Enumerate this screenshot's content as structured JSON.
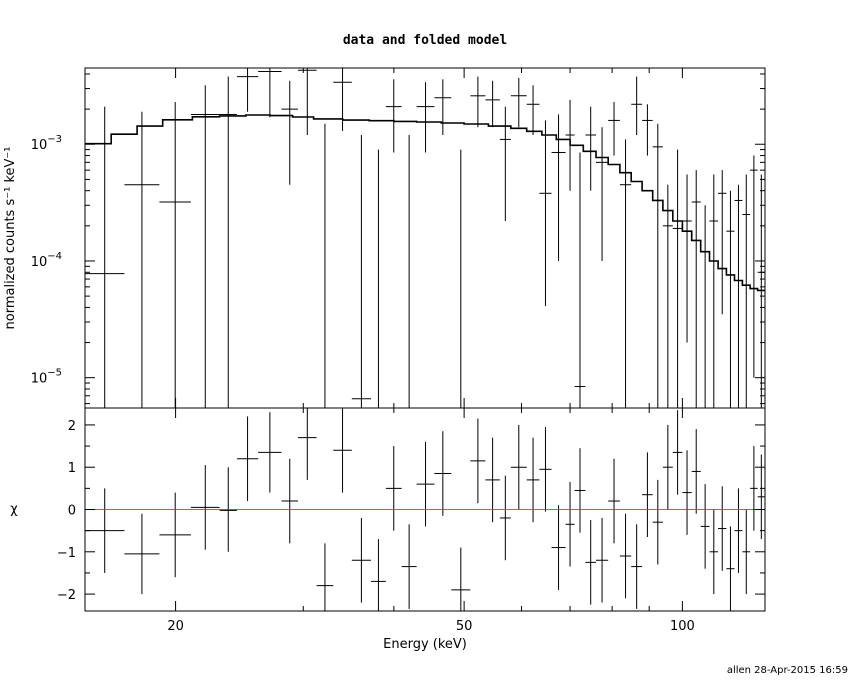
{
  "chart_data": {
    "title": "data and folded model",
    "footer": "allen 28-Apr-2015 16:59",
    "xlabel": "Energy (keV)",
    "x_scale": "log",
    "xlim": [
      15.0,
      130.0
    ],
    "x_ticks": [
      {
        "value": 20,
        "label": "20"
      },
      {
        "value": 50,
        "label": "50"
      },
      {
        "value": 100,
        "label": "100"
      }
    ],
    "colors": {
      "data": "#000000",
      "model": "#000000",
      "zero_line": "#00cc00"
    },
    "panels": [
      {
        "id": "spectrum",
        "type": "scatter",
        "ylabel": "normalized counts s⁻¹ keV⁻¹",
        "y_scale": "log",
        "ylim": [
          5.5e-06,
          0.0045
        ],
        "y_ticks": [
          {
            "value": 0.001,
            "base": "10",
            "exp": "−3"
          },
          {
            "value": 0.0001,
            "base": "10",
            "exp": "−4"
          },
          {
            "value": 1e-05,
            "base": "10",
            "exp": "−5"
          }
        ],
        "data": [
          [
            15.0,
            17.0,
            7.8e-05,
            5.5e-06,
            0.0021
          ],
          [
            17.0,
            19.0,
            0.00045,
            5.5e-06,
            0.0019
          ],
          [
            19.0,
            21.0,
            0.00032,
            5.5e-06,
            0.0023
          ],
          [
            21.0,
            23.0,
            0.0018,
            5.5e-06,
            0.0032
          ],
          [
            23.0,
            24.3,
            0.0018,
            5.5e-06,
            0.0038
          ],
          [
            24.3,
            26.0,
            0.0038,
            0.0019,
            0.0048
          ],
          [
            26.0,
            28.0,
            0.0042,
            0.0017,
            0.0048
          ],
          [
            28.0,
            29.5,
            0.002,
            0.00045,
            0.0035
          ],
          [
            29.5,
            31.3,
            0.0043,
            0.0012,
            0.0048
          ],
          [
            31.3,
            33.0,
            5.5e-06,
            5.5e-06,
            0.0015
          ],
          [
            33.0,
            35.0,
            0.0034,
            0.0013,
            0.0048
          ],
          [
            35.0,
            37.2,
            6.6e-06,
            5.5e-06,
            0.0012
          ],
          [
            37.2,
            39.0,
            5.5e-06,
            5.5e-06,
            0.0009
          ],
          [
            39.0,
            41.0,
            0.0021,
            0.00085,
            0.0036
          ],
          [
            41.0,
            43.0,
            5.5e-06,
            5.5e-06,
            0.0012
          ],
          [
            43.0,
            45.5,
            0.0021,
            0.00085,
            0.0034
          ],
          [
            45.5,
            48.0,
            0.0025,
            0.0012,
            0.0036
          ],
          [
            48.0,
            51.0,
            5.5e-06,
            5.5e-06,
            0.0009
          ],
          [
            51.0,
            53.5,
            0.0026,
            0.0014,
            0.0038
          ],
          [
            53.5,
            56.0,
            0.0024,
            0.0014,
            0.0035
          ],
          [
            56.0,
            58.0,
            0.0011,
            0.00022,
            0.0021
          ],
          [
            58.0,
            61.0,
            0.0026,
            0.0014,
            0.0037
          ],
          [
            61.0,
            63.5,
            0.0022,
            0.0012,
            0.0032
          ],
          [
            63.5,
            66.0,
            0.00038,
            4.1e-05,
            0.0016
          ],
          [
            66.0,
            69.0,
            0.00085,
            0.0001,
            0.0018
          ],
          [
            69.0,
            71.0,
            0.0012,
            0.0004,
            0.0024
          ],
          [
            71.0,
            73.5,
            8.4e-06,
            5.5e-06,
            0.00085
          ],
          [
            73.5,
            76.0,
            0.0012,
            0.0004,
            0.0021
          ],
          [
            76.0,
            79.0,
            0.0007,
            0.0001,
            0.0014
          ],
          [
            79.0,
            82.0,
            0.0016,
            0.0008,
            0.0023
          ],
          [
            82.0,
            85.0,
            0.00045,
            5.5e-06,
            0.0011
          ],
          [
            85.0,
            88.0,
            0.0022,
            0.0012,
            0.0038
          ],
          [
            88.0,
            91.0,
            0.0016,
            0.0008,
            0.0022
          ],
          [
            91.0,
            94.0,
            0.00095,
            5.5e-06,
            0.0015
          ],
          [
            94.0,
            97.0,
            0.0002,
            5.5e-06,
            0.00045
          ],
          [
            97.0,
            100.0,
            0.00019,
            5.5e-06,
            0.0009
          ],
          [
            100.0,
            103.0,
            0.00022,
            2e-05,
            0.00055
          ],
          [
            103.0,
            106.0,
            0.00032,
            5.5e-06,
            0.0006
          ],
          [
            106.0,
            109.0,
            0.00012,
            5.5e-06,
            0.0003
          ],
          [
            109.0,
            112.0,
            0.00022,
            5.5e-06,
            0.00055
          ],
          [
            112.0,
            115.0,
            0.00038,
            3.5e-05,
            0.0006
          ],
          [
            115.0,
            118.0,
            0.00018,
            5.5e-06,
            0.0004
          ],
          [
            118.0,
            121.0,
            0.00033,
            5.5e-06,
            0.00045
          ],
          [
            121.0,
            124.0,
            0.00025,
            5.5e-06,
            0.00055
          ],
          [
            124.0,
            127.0,
            0.0006,
            1e-05,
            0.0008
          ],
          [
            127.0,
            130.0,
            8e-05,
            5.5e-06,
            0.00055
          ]
        ],
        "model": [
          [
            15.0,
            16.3,
            0.00101
          ],
          [
            16.3,
            17.7,
            0.00122
          ],
          [
            17.7,
            19.2,
            0.00143
          ],
          [
            19.2,
            21.1,
            0.00162
          ],
          [
            21.1,
            23.0,
            0.00172
          ],
          [
            23.0,
            25.0,
            0.00175
          ],
          [
            25.0,
            27.0,
            0.00178
          ],
          [
            27.0,
            29.0,
            0.00176
          ],
          [
            29.0,
            31.0,
            0.00171
          ],
          [
            31.0,
            34.0,
            0.00165
          ],
          [
            34.0,
            37.0,
            0.00161
          ],
          [
            37.0,
            40.0,
            0.00159
          ],
          [
            40.0,
            43.0,
            0.00157
          ],
          [
            43.0,
            46.5,
            0.00155
          ],
          [
            46.5,
            50.0,
            0.00152
          ],
          [
            50.0,
            54.0,
            0.00149
          ],
          [
            54.0,
            58.0,
            0.00143
          ],
          [
            58.0,
            61.0,
            0.00137
          ],
          [
            61.0,
            64.0,
            0.00129
          ],
          [
            64.0,
            67.0,
            0.0012
          ],
          [
            67.0,
            70.0,
            0.0011
          ],
          [
            70.0,
            73.0,
            0.00098
          ],
          [
            73.0,
            76.0,
            0.00087
          ],
          [
            76.0,
            79.0,
            0.00077
          ],
          [
            79.0,
            82.0,
            0.00067
          ],
          [
            82.0,
            85.0,
            0.00057
          ],
          [
            85.0,
            88.0,
            0.00048
          ],
          [
            88.0,
            91.0,
            0.0004
          ],
          [
            91.0,
            94.0,
            0.00033
          ],
          [
            94.0,
            97.0,
            0.00027
          ],
          [
            97.0,
            100.0,
            0.00022
          ],
          [
            100.0,
            103.0,
            0.00018
          ],
          [
            103.0,
            106.0,
            0.00015
          ],
          [
            106.0,
            109.0,
            0.00012
          ],
          [
            109.0,
            112.0,
            0.0001
          ],
          [
            112.0,
            115.0,
            8.6e-05
          ],
          [
            115.0,
            118.0,
            7.6e-05
          ],
          [
            118.0,
            121.0,
            6.8e-05
          ],
          [
            121.0,
            124.0,
            6.2e-05
          ],
          [
            124.0,
            127.0,
            5.8e-05
          ],
          [
            127.0,
            130.0,
            5.6e-05
          ]
        ]
      },
      {
        "id": "residuals",
        "type": "scatter",
        "ylabel": "χ",
        "y_scale": "linear",
        "ylim": [
          -2.4,
          2.4
        ],
        "y_ticks": [
          {
            "value": 2,
            "label": "2"
          },
          {
            "value": 1,
            "label": "1"
          },
          {
            "value": 0,
            "label": "0"
          },
          {
            "value": -1,
            "label": "−1"
          },
          {
            "value": -2,
            "label": "−2"
          }
        ],
        "zero_line": 0,
        "data": [
          [
            15.0,
            17.0,
            -0.5,
            -1.5,
            0.5
          ],
          [
            17.0,
            19.0,
            -1.05,
            -2.0,
            -0.1
          ],
          [
            19.0,
            21.0,
            -0.6,
            -1.6,
            0.4
          ],
          [
            21.0,
            23.0,
            0.05,
            -0.95,
            1.05
          ],
          [
            23.0,
            24.3,
            -0.02,
            -1.0,
            1.0
          ],
          [
            24.3,
            26.0,
            1.2,
            0.2,
            2.2
          ],
          [
            26.0,
            28.0,
            1.35,
            0.4,
            2.3
          ],
          [
            28.0,
            29.5,
            0.2,
            -0.8,
            1.2
          ],
          [
            29.5,
            31.3,
            1.7,
            0.7,
            2.4
          ],
          [
            31.3,
            33.0,
            -1.8,
            -2.4,
            -0.8
          ],
          [
            33.0,
            35.0,
            1.4,
            0.4,
            2.4
          ],
          [
            35.0,
            37.2,
            -1.2,
            -2.2,
            -0.2
          ],
          [
            37.2,
            39.0,
            -1.7,
            -2.4,
            -0.7
          ],
          [
            39.0,
            41.0,
            0.5,
            -0.5,
            1.5
          ],
          [
            41.0,
            43.0,
            -1.35,
            -2.35,
            -0.35
          ],
          [
            43.0,
            45.5,
            0.6,
            -0.4,
            1.6
          ],
          [
            45.5,
            48.0,
            0.85,
            -0.15,
            1.85
          ],
          [
            48.0,
            51.0,
            -1.9,
            -2.4,
            -0.9
          ],
          [
            51.0,
            53.5,
            1.15,
            0.15,
            2.15
          ],
          [
            53.5,
            56.0,
            0.7,
            -0.3,
            1.7
          ],
          [
            56.0,
            58.0,
            -0.2,
            -1.2,
            0.8
          ],
          [
            58.0,
            61.0,
            1.0,
            0.0,
            2.0
          ],
          [
            61.0,
            63.5,
            0.7,
            -0.3,
            1.7
          ],
          [
            63.5,
            66.0,
            0.95,
            -0.05,
            1.95
          ],
          [
            66.0,
            69.0,
            -0.9,
            -1.9,
            0.1
          ],
          [
            69.0,
            71.0,
            -0.35,
            -1.35,
            0.65
          ],
          [
            71.0,
            73.5,
            0.45,
            -0.55,
            1.45
          ],
          [
            73.5,
            76.0,
            -1.25,
            -2.25,
            -0.25
          ],
          [
            76.0,
            79.0,
            -1.2,
            -2.2,
            -0.2
          ],
          [
            79.0,
            82.0,
            0.2,
            -0.8,
            1.2
          ],
          [
            82.0,
            85.0,
            -1.1,
            -2.1,
            -0.1
          ],
          [
            85.0,
            88.0,
            -1.35,
            -2.35,
            -0.35
          ],
          [
            88.0,
            91.0,
            0.35,
            -0.65,
            1.35
          ],
          [
            91.0,
            94.0,
            -0.3,
            -1.3,
            0.7
          ],
          [
            94.0,
            97.0,
            1.0,
            0.0,
            2.0
          ],
          [
            97.0,
            100.0,
            1.35,
            0.35,
            2.35
          ],
          [
            100.0,
            103.0,
            0.4,
            -0.6,
            1.4
          ],
          [
            103.0,
            106.0,
            0.9,
            -0.1,
            1.9
          ],
          [
            106.0,
            109.0,
            -0.4,
            -1.4,
            0.6
          ],
          [
            109.0,
            112.0,
            -1.0,
            -2.0,
            0.0
          ],
          [
            112.0,
            115.0,
            -0.45,
            -1.45,
            0.55
          ],
          [
            115.0,
            118.0,
            -1.4,
            -2.4,
            -0.4
          ],
          [
            118.0,
            121.0,
            -0.5,
            -1.5,
            0.5
          ],
          [
            121.0,
            124.0,
            -1.0,
            -2.0,
            0.0
          ],
          [
            124.0,
            127.0,
            0.5,
            -0.5,
            1.5
          ],
          [
            127.0,
            130.0,
            0.3,
            -0.7,
            1.3
          ]
        ]
      }
    ]
  }
}
